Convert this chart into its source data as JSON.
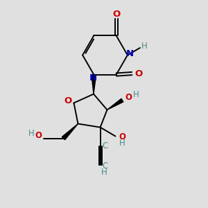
{
  "bg_color": "#e0e0e0",
  "bond_color": "#000000",
  "N_color": "#0000bb",
  "O_color": "#cc0000",
  "C_label_color": "#4a8a8a",
  "H_color": "#4a8a8a",
  "bond_width": 1.4,
  "figsize": [
    3.0,
    3.0
  ],
  "dpi": 100,
  "xlim": [
    0,
    10
  ],
  "ylim": [
    0,
    10
  ]
}
